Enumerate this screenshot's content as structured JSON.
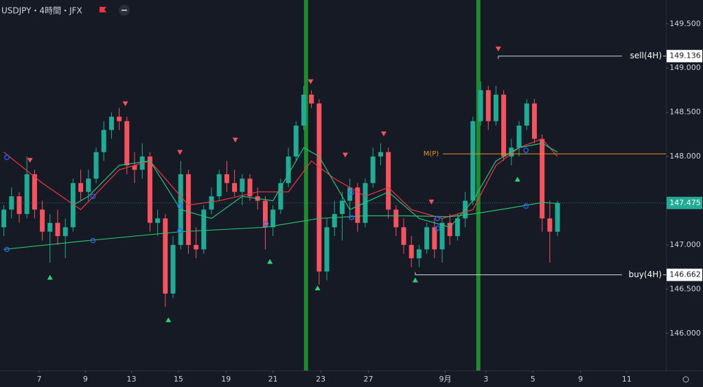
{
  "chart_data": {
    "type": "candlestick",
    "title": "USDJPY・4時間・JFX",
    "up_color": "#22ab94",
    "down_color": "#f7525f",
    "open": [
      147.2,
      147.4,
      147.55,
      147.35,
      147.8,
      147.4,
      147.15,
      147.25,
      147.1,
      147.2,
      147.7,
      147.6,
      147.75,
      148.05,
      148.3,
      148.45,
      148.4,
      147.9,
      147.85,
      148.0,
      147.25,
      147.3,
      146.45,
      147.0,
      147.8,
      147.0,
      146.95,
      147.4,
      147.55,
      147.8,
      147.7,
      147.6,
      147.75,
      147.55,
      147.5,
      147.2,
      147.4,
      147.7,
      148.0,
      148.35,
      148.7,
      148.6,
      146.7,
      147.2,
      147.35,
      147.5,
      147.65,
      147.25,
      147.7,
      148.0,
      148.05,
      147.4,
      147.2,
      147.0,
      146.85,
      146.95,
      147.2,
      146.95,
      147.25,
      147.1,
      147.3,
      147.5,
      148.4,
      148.75,
      148.4,
      148.7,
      148.0,
      148.1,
      148.35,
      148.6,
      148.2,
      147.3,
      147.15
    ],
    "high": [
      147.45,
      147.65,
      147.6,
      148.0,
      147.85,
      147.5,
      147.35,
      147.4,
      147.3,
      147.75,
      147.85,
      147.85,
      148.1,
      148.4,
      148.5,
      148.55,
      148.45,
      148.05,
      148.15,
      148.05,
      147.4,
      147.35,
      147.1,
      147.95,
      147.85,
      147.2,
      147.45,
      147.65,
      147.85,
      147.95,
      147.85,
      147.8,
      147.8,
      147.65,
      147.55,
      147.45,
      147.75,
      148.1,
      148.4,
      148.8,
      148.75,
      148.65,
      147.3,
      147.5,
      147.6,
      147.75,
      147.7,
      147.75,
      148.1,
      148.15,
      148.1,
      147.45,
      147.3,
      147.1,
      147.0,
      147.25,
      147.3,
      147.3,
      147.35,
      147.35,
      147.6,
      148.45,
      148.85,
      148.8,
      148.8,
      148.75,
      148.2,
      148.4,
      148.65,
      148.65,
      148.25,
      147.5,
      147.5
    ],
    "low": [
      147.1,
      147.3,
      147.25,
      147.3,
      147.3,
      147.05,
      146.8,
      147.0,
      146.85,
      147.15,
      147.5,
      147.5,
      147.7,
      147.95,
      148.2,
      148.3,
      147.8,
      147.7,
      147.75,
      147.15,
      147.1,
      146.3,
      146.4,
      146.95,
      146.9,
      146.85,
      146.9,
      147.35,
      147.5,
      147.6,
      147.55,
      147.45,
      147.5,
      147.4,
      146.95,
      147.1,
      147.35,
      147.65,
      147.95,
      148.3,
      148.55,
      146.55,
      146.6,
      147.1,
      147.05,
      147.3,
      147.15,
      147.2,
      147.65,
      147.9,
      147.3,
      147.1,
      146.9,
      146.75,
      146.75,
      146.9,
      146.85,
      146.8,
      147.0,
      147.05,
      147.2,
      147.45,
      148.35,
      148.3,
      148.35,
      147.95,
      147.9,
      148.0,
      148.3,
      148.15,
      147.15,
      146.8,
      147.1
    ],
    "close": [
      147.4,
      147.55,
      147.35,
      147.8,
      147.4,
      147.15,
      147.25,
      147.1,
      147.2,
      147.7,
      147.6,
      147.75,
      148.05,
      148.3,
      148.45,
      148.4,
      147.9,
      147.85,
      148.0,
      147.25,
      147.3,
      146.45,
      147.0,
      147.8,
      147.0,
      146.95,
      147.4,
      147.55,
      147.8,
      147.7,
      147.6,
      147.75,
      147.55,
      147.5,
      147.2,
      147.4,
      147.7,
      148.0,
      148.35,
      148.7,
      148.6,
      146.7,
      147.2,
      147.35,
      147.5,
      147.65,
      147.25,
      147.7,
      148.0,
      148.05,
      147.4,
      147.2,
      147.0,
      146.85,
      146.95,
      147.2,
      146.95,
      147.25,
      147.1,
      147.3,
      147.5,
      148.4,
      148.75,
      148.4,
      148.7,
      148.0,
      148.1,
      148.35,
      148.6,
      148.2,
      147.3,
      147.15,
      147.475
    ],
    "xlim": [
      -0.5,
      86.1
    ],
    "xticks": [
      {
        "value": 4.6,
        "label": "7"
      },
      {
        "value": 10.6,
        "label": "9"
      },
      {
        "value": 16.6,
        "label": "13"
      },
      {
        "value": 22.7,
        "label": "15"
      },
      {
        "value": 28.9,
        "label": "19"
      },
      {
        "value": 35.0,
        "label": "21"
      },
      {
        "value": 41.2,
        "label": "23"
      },
      {
        "value": 47.4,
        "label": "27"
      },
      {
        "value": 57.4,
        "label": "9月"
      },
      {
        "value": 62.7,
        "label": "3"
      },
      {
        "value": 68.8,
        "label": "5"
      },
      {
        "value": 75.0,
        "label": "9"
      },
      {
        "value": 81.0,
        "label": "11"
      }
    ],
    "ylim": [
      145.58,
      149.77
    ],
    "yticks": [
      {
        "value": 146,
        "label": "146.000"
      },
      {
        "value": 146.5,
        "label": "146.500"
      },
      {
        "value": 147,
        "label": "147.000"
      },
      {
        "value": 148,
        "label": "148.000"
      },
      {
        "value": 148.5,
        "label": "148.500"
      },
      {
        "value": 149,
        "label": "149.000"
      },
      {
        "value": 149.5,
        "label": "149.500"
      }
    ],
    "lines": [
      {
        "color": "#f23645",
        "x": [
          0,
          5,
          10,
          15,
          19,
          24,
          28,
          33,
          37,
          40,
          43,
          47,
          50,
          53,
          57,
          61,
          64,
          67,
          70,
          72
        ],
        "values": [
          148.05,
          147.7,
          147.4,
          147.85,
          147.95,
          147.45,
          147.5,
          147.6,
          147.6,
          147.95,
          147.75,
          147.55,
          147.65,
          147.4,
          147.3,
          147.4,
          147.9,
          148.1,
          148.2,
          148.0
        ]
      },
      {
        "color": "#26c281",
        "x": [
          9,
          11,
          15,
          19,
          23,
          27,
          31,
          35,
          39,
          41,
          45,
          50,
          54,
          58,
          61,
          64,
          67,
          70,
          72
        ],
        "values": [
          147.45,
          147.55,
          147.9,
          147.95,
          147.4,
          147.3,
          147.55,
          147.5,
          148.1,
          148.0,
          147.4,
          147.6,
          147.3,
          147.2,
          147.5,
          147.95,
          148.1,
          148.15,
          148.05
        ]
      },
      {
        "color": "#2bbd6e",
        "x": [
          0,
          11,
          23,
          34,
          41,
          47,
          52,
          58,
          61,
          66,
          70,
          72
        ],
        "values": [
          146.95,
          147.05,
          147.15,
          147.2,
          147.3,
          147.33,
          147.33,
          147.32,
          147.35,
          147.42,
          147.48,
          147.47
        ]
      }
    ],
    "sell_signals": {
      "color": "#f7525f",
      "x": [
        3.4,
        15.8,
        22.9,
        30.1,
        39.9,
        44.4,
        49.4,
        55.6,
        64.3
      ],
      "values": [
        147.96,
        148.6,
        148.05,
        148.19,
        148.85,
        148.02,
        148.26,
        147.49,
        149.22
      ]
    },
    "buy_signals": {
      "color": "#2bd67b",
      "x": [
        6.0,
        21.4,
        34.6,
        40.8,
        53.5,
        66.8
      ],
      "values": [
        146.63,
        146.15,
        146.81,
        146.51,
        146.6,
        147.74
      ]
    },
    "markers": {
      "color": "#2962ff",
      "x": [
        0.4,
        0.4,
        11.6,
        11.6,
        22.9,
        22.9,
        34.1,
        45.2,
        45.2,
        56.4,
        56.4,
        67.9,
        67.9
      ],
      "values": [
        147.99,
        146.95,
        147.55,
        147.05,
        147.44,
        147.16,
        147.24,
        147.59,
        147.31,
        147.3,
        147.19,
        148.07,
        147.44
      ]
    },
    "levels": [
      {
        "name": "sell(4H)",
        "value": 149.136,
        "x": 64.3
      },
      {
        "name": "buy(4H)",
        "value": 146.662,
        "x": 53.5
      }
    ],
    "midpoint": {
      "name": "M(P)",
      "value": 148.03,
      "x": 57.1,
      "color": "#e8961e"
    },
    "last_price": {
      "value": 147.475,
      "color": "#22ab94"
    },
    "highlights": {
      "x": [
        39.3,
        61.7
      ],
      "color": "#1e8c2e"
    }
  }
}
